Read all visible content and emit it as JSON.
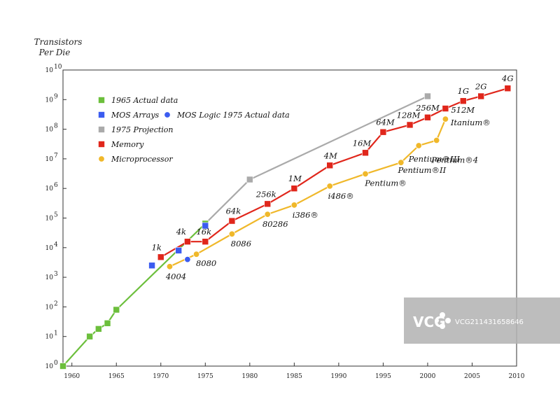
{
  "chart_data": {
    "type": "line",
    "title": "",
    "ylabel_lines": [
      "Transistors",
      "Per Die"
    ],
    "xlabel": "",
    "yscale": "log",
    "xlim": [
      1959,
      2010
    ],
    "ylim_exponent": [
      0,
      10
    ],
    "y_ticks": [
      {
        "base": "10",
        "exp": "0"
      },
      {
        "base": "10",
        "exp": "1"
      },
      {
        "base": "10",
        "exp": "2"
      },
      {
        "base": "10",
        "exp": "3"
      },
      {
        "base": "10",
        "exp": "4"
      },
      {
        "base": "10",
        "exp": "5"
      },
      {
        "base": "10",
        "exp": "6"
      },
      {
        "base": "10",
        "exp": "7"
      },
      {
        "base": "10",
        "exp": "8"
      },
      {
        "base": "10",
        "exp": "9"
      },
      {
        "base": "10",
        "exp": "10"
      }
    ],
    "x_ticks": [
      1960,
      1965,
      1970,
      1975,
      1980,
      1985,
      1990,
      1995,
      2000,
      2005,
      2010
    ],
    "series": [
      {
        "name": "1965 Actual data",
        "color": "#6cbf3c",
        "marker": "square",
        "line": true,
        "points": [
          [
            1959,
            1
          ],
          [
            1962,
            10
          ],
          [
            1963,
            18
          ],
          [
            1964,
            28
          ],
          [
            1965,
            80
          ],
          [
            1975,
            65000
          ]
        ],
        "labels": []
      },
      {
        "name": "MOS Arrays",
        "color": "#3b5cf0",
        "marker": "square",
        "line": false,
        "points": [
          [
            1969,
            2500
          ],
          [
            1972,
            8000
          ],
          [
            1975,
            55000
          ]
        ],
        "labels": []
      },
      {
        "name": "MOS Logic 1975 Actual data",
        "color": "#3b5cf0",
        "marker": "circle",
        "line": false,
        "points": [
          [
            1973,
            4000
          ]
        ],
        "labels": []
      },
      {
        "name": "1975 Projection",
        "color": "#aaaaaa",
        "marker": "square",
        "line": true,
        "points": [
          [
            1975,
            65000
          ],
          [
            1980,
            2000000
          ],
          [
            2000,
            1300000000
          ]
        ],
        "labels": []
      },
      {
        "name": "Memory",
        "color": "#e0261b",
        "marker": "square",
        "line": true,
        "points": [
          [
            1970,
            4800
          ],
          [
            1973,
            16000
          ],
          [
            1975,
            16000
          ],
          [
            1978,
            80000
          ],
          [
            1982,
            300000
          ],
          [
            1985,
            1000000
          ],
          [
            1989,
            6000000
          ],
          [
            1993,
            16000000
          ],
          [
            1995,
            80000000
          ],
          [
            1998,
            140000000
          ],
          [
            2000,
            250000000
          ],
          [
            2002,
            500000000
          ],
          [
            2004,
            900000000
          ],
          [
            2006,
            1300000000
          ],
          [
            2009,
            2400000000
          ]
        ],
        "labels": [
          "1k",
          "4k",
          "16k",
          "64k",
          "256k",
          "1M",
          "4M",
          "16M",
          "64M",
          "128M",
          "256M",
          "512M",
          "1G",
          "2G",
          "4G"
        ]
      },
      {
        "name": "Microprocessor",
        "color": "#f0b82a",
        "marker": "circle",
        "line": true,
        "points": [
          [
            1971,
            2300
          ],
          [
            1974,
            6000
          ],
          [
            1978,
            29000
          ],
          [
            1982,
            134000
          ],
          [
            1985,
            275000
          ],
          [
            1989,
            1200000
          ],
          [
            1993,
            3100000
          ],
          [
            1997,
            7500000
          ],
          [
            1999,
            28000000
          ],
          [
            2001,
            42000000
          ],
          [
            2002,
            220000000
          ]
        ],
        "labels": [
          "4004",
          "8080",
          "8086",
          "80286",
          "i386®",
          "i486®",
          "Pentium®",
          "Pentium®II",
          "Pentium®III",
          "Pentium®4",
          "Itanium®"
        ]
      }
    ],
    "legend": [
      {
        "label": "1965 Actual data",
        "color": "#6cbf3c",
        "marker": "square"
      },
      {
        "label": "MOS Arrays",
        "color": "#3b5cf0",
        "marker": "square"
      },
      {
        "label": "MOS Logic 1975 Actual data",
        "color": "#3b5cf0",
        "marker": "circle"
      },
      {
        "label": "1975 Projection",
        "color": "#aaaaaa",
        "marker": "square"
      },
      {
        "label": "Memory",
        "color": "#e0261b",
        "marker": "square"
      },
      {
        "label": "Microprocessor",
        "color": "#f0b82a",
        "marker": "circle"
      }
    ],
    "legend_position": "upper-left"
  },
  "watermark": {
    "brand": "VCG",
    "id_text": "VCG211431658646"
  }
}
